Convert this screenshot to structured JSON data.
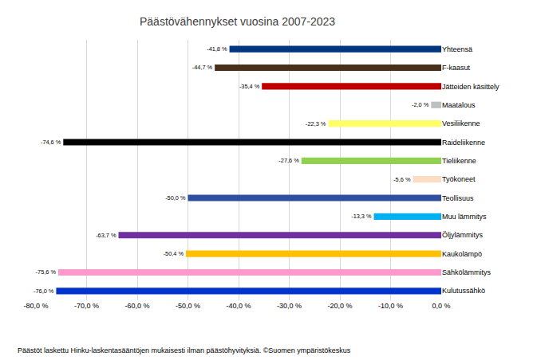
{
  "chart_data": {
    "type": "bar",
    "orientation": "horizontal",
    "title": "Päästövähennykset vuosina 2007-2023",
    "annotations": [
      "Päästöt laskettu Hinku-laskentasääntöjen mukaisesti ilman päästöhyvityksiä. ©Suomen ympäristökeskus"
    ],
    "categories": [
      "Yhteensä",
      "F-kaasut",
      "Jätteiden käsittely",
      "Maatalous",
      "Vesiliikenne",
      "Raideliikenne",
      "Tieliikenne",
      "Työkoneet",
      "Teollisuus",
      "Muu lämmitys",
      "Öljylämmitys",
      "Kaukolämpö",
      "Sähkölämmitys",
      "Kulutussähkö"
    ],
    "values": [
      -41.8,
      -44.7,
      -35.4,
      -2.0,
      -22.3,
      -74.6,
      -27.6,
      -5.6,
      -50.0,
      -13.3,
      -63.7,
      -50.4,
      -75.6,
      -76.0
    ],
    "value_labels": [
      "-41,8 %",
      "-44,7 %",
      "-35,4 %",
      "-2,0 %",
      "-22,3 %",
      "-74,6 %",
      "-27,6 %",
      "-5,6 %",
      "-50,0 %",
      "-13,3 %",
      "-63,7 %",
      "-50,4 %",
      "-75,6 %",
      "-76,0 %"
    ],
    "colors": [
      "#003580",
      "#4a3019",
      "#c00000",
      "#bfbfbf",
      "#ffff66",
      "#000000",
      "#92d050",
      "#fbdcc4",
      "#2e4fa0",
      "#00b0f0",
      "#7030a0",
      "#ffc000",
      "#ff99cc",
      "#0033cc"
    ],
    "data_labels": true,
    "xlim": [
      -80,
      0
    ],
    "xticks": [
      {
        "value": -80,
        "label": "-80,0 %"
      },
      {
        "value": -70,
        "label": "-70,0 %"
      },
      {
        "value": -60,
        "label": "-60,0 %"
      },
      {
        "value": -50,
        "label": "-50,0 %"
      },
      {
        "value": -40,
        "label": "-40,0 %"
      },
      {
        "value": -30,
        "label": "-30,0 %"
      },
      {
        "value": -20,
        "label": "-20,0 %"
      },
      {
        "value": -10,
        "label": "-10,0 %"
      },
      {
        "value": 0,
        "label": "0,0 %"
      }
    ],
    "grid": true
  }
}
